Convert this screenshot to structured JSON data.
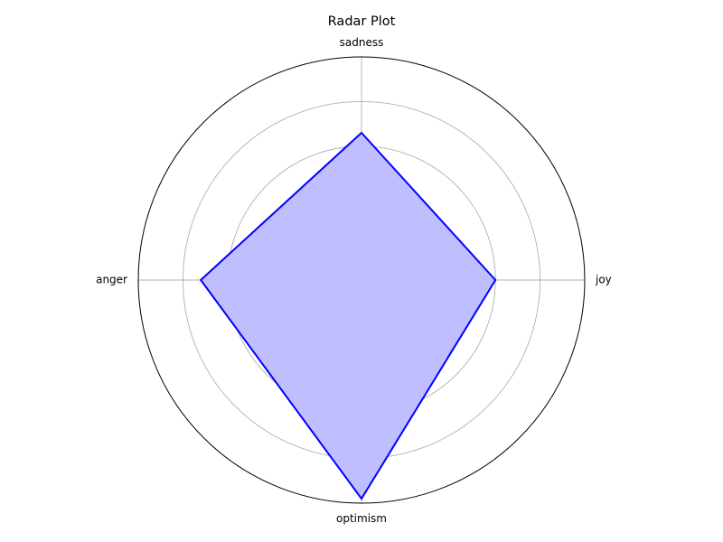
{
  "chart_data": {
    "type": "radar",
    "title": "Radar Plot",
    "categories": [
      "joy",
      "sadness",
      "anger",
      "optimism"
    ],
    "series": [
      {
        "values": [
          0.6,
          0.66,
          0.72,
          0.98
        ],
        "line_color": "#0000ff",
        "fill_color": "#bfbfff"
      }
    ],
    "rlim": [
      0,
      1
    ],
    "rings": [
      0.2,
      0.4,
      0.6,
      0.8
    ],
    "grid": true,
    "radial_tick_labels": false
  }
}
